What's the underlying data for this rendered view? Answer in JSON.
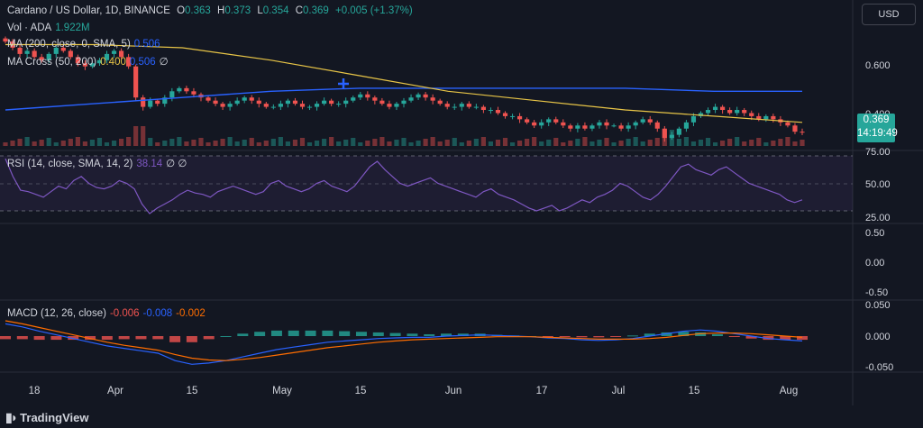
{
  "header": {
    "symbol_title": "Cardano / US Dollar, 1D, BINANCE",
    "o_label": "O",
    "o_value": "0.363",
    "h_label": "H",
    "h_value": "0.373",
    "l_label": "L",
    "l_value": "0.354",
    "c_label": "C",
    "c_value": "0.369",
    "change": "+0.005 (+1.37%)"
  },
  "currency_button": "USD",
  "price_tag": {
    "price": "0.369",
    "countdown": "14:19:49"
  },
  "legends": {
    "vol": {
      "name": "Vol · ADA",
      "value": "1.922M"
    },
    "ma": {
      "name": "MA (200, close, 0, SMA, 5)",
      "value": "0.506"
    },
    "ma_cross": {
      "name": "MA Cross (50, 200)",
      "v1": "0.400",
      "v2": "0.506",
      "tail": "∅"
    },
    "rsi": {
      "name": "RSI (14, close, SMA, 14, 2)",
      "value": "38.14",
      "tail": "∅ ∅"
    },
    "macd": {
      "name": "MACD (12, 26, close)",
      "v1": "-0.006",
      "v2": "-0.008",
      "v3": "-0.002"
    }
  },
  "branding": "TradingView",
  "colors": {
    "up": "#26a69a",
    "down": "#ef5350",
    "ma200": "#2962ff",
    "ma50": "#e8c547",
    "rsi": "#7e57c2",
    "macd": "#2962ff",
    "signal": "#ff6d00"
  },
  "chart_data": {
    "type": "candlestick",
    "x_tick_labels": [
      "18",
      "Apr",
      "15",
      "May",
      "15",
      "Jun",
      "17",
      "Jul",
      "15",
      "Aug"
    ],
    "price_axis": {
      "ticks": [
        "0.600",
        "0.400"
      ],
      "min": 0.33,
      "max": 0.75
    },
    "price_close_approx": [
      0.66,
      0.64,
      0.62,
      0.63,
      0.61,
      0.6,
      0.62,
      0.64,
      0.63,
      0.61,
      0.59,
      0.58,
      0.59,
      0.6,
      0.62,
      0.63,
      0.61,
      0.58,
      0.48,
      0.45,
      0.47,
      0.46,
      0.48,
      0.5,
      0.51,
      0.5,
      0.49,
      0.48,
      0.47,
      0.46,
      0.45,
      0.46,
      0.47,
      0.48,
      0.47,
      0.46,
      0.45,
      0.45,
      0.46,
      0.47,
      0.46,
      0.45,
      0.45,
      0.46,
      0.47,
      0.46,
      0.46,
      0.47,
      0.48,
      0.49,
      0.48,
      0.47,
      0.46,
      0.45,
      0.46,
      0.47,
      0.48,
      0.49,
      0.48,
      0.47,
      0.46,
      0.45,
      0.45,
      0.46,
      0.45,
      0.45,
      0.44,
      0.44,
      0.43,
      0.42,
      0.42,
      0.41,
      0.4,
      0.39,
      0.4,
      0.41,
      0.4,
      0.39,
      0.38,
      0.39,
      0.38,
      0.39,
      0.4,
      0.39,
      0.39,
      0.38,
      0.39,
      0.4,
      0.41,
      0.4,
      0.38,
      0.35,
      0.36,
      0.38,
      0.4,
      0.42,
      0.43,
      0.44,
      0.45,
      0.44,
      0.43,
      0.44,
      0.43,
      0.42,
      0.41,
      0.42,
      0.41,
      0.4,
      0.39,
      0.37,
      0.369
    ],
    "ma200_approx": [
      0.44,
      0.46,
      0.48,
      0.5,
      0.51,
      0.51,
      0.51,
      0.51,
      0.5,
      0.5
    ],
    "ma50_approx": [
      0.65,
      0.65,
      0.64,
      0.6,
      0.55,
      0.5,
      0.47,
      0.44,
      0.42,
      0.4
    ],
    "volume_approx": "bars per candle, spike near mid-April and early July",
    "rsi": {
      "ticks": [
        "75.00",
        "50.00",
        "25.00"
      ],
      "levels": [
        70,
        50,
        30
      ],
      "values_approx": [
        68,
        55,
        45,
        44,
        42,
        40,
        44,
        48,
        46,
        52,
        55,
        50,
        47,
        46,
        48,
        52,
        50,
        46,
        35,
        28,
        32,
        35,
        38,
        42,
        45,
        43,
        42,
        40,
        44,
        46,
        48,
        46,
        44,
        42,
        44,
        50,
        52,
        48,
        46,
        44,
        46,
        50,
        52,
        48,
        46,
        44,
        48,
        55,
        62,
        66,
        60,
        55,
        50,
        48,
        50,
        52,
        54,
        50,
        48,
        46,
        44,
        42,
        40,
        44,
        46,
        42,
        40,
        38,
        35,
        32,
        30,
        32,
        34,
        30,
        32,
        35,
        38,
        36,
        40,
        42,
        45,
        50,
        48,
        44,
        40,
        38,
        42,
        48,
        55,
        62,
        64,
        60,
        58,
        56,
        60,
        62,
        58,
        54,
        50,
        48,
        46,
        44,
        42,
        38,
        36,
        38
      ]
    },
    "middle_pane": {
      "ticks": [
        "0.50",
        "0.00",
        "-0.50"
      ]
    },
    "macd": {
      "ticks": [
        "0.050",
        "0.000",
        "-0.050"
      ],
      "macd_approx": [
        0.02,
        0.015,
        0.008,
        0.002,
        -0.004,
        -0.01,
        -0.016,
        -0.02,
        -0.024,
        -0.028,
        -0.04,
        -0.046,
        -0.044,
        -0.04,
        -0.034,
        -0.028,
        -0.022,
        -0.018,
        -0.014,
        -0.01,
        -0.008,
        -0.006,
        -0.004,
        -0.003,
        -0.002,
        -0.002,
        0.0,
        0.001,
        0.002,
        0.001,
        0.0,
        -0.001,
        -0.003,
        -0.004,
        -0.006,
        -0.007,
        -0.006,
        -0.004,
        0.0,
        0.004,
        0.008,
        0.01,
        0.008,
        0.004,
        0.0,
        -0.004,
        -0.006,
        -0.008
      ],
      "signal_approx": [
        0.025,
        0.02,
        0.014,
        0.008,
        0.002,
        -0.004,
        -0.01,
        -0.015,
        -0.019,
        -0.023,
        -0.03,
        -0.036,
        -0.039,
        -0.04,
        -0.038,
        -0.035,
        -0.031,
        -0.027,
        -0.023,
        -0.019,
        -0.016,
        -0.013,
        -0.01,
        -0.008,
        -0.006,
        -0.005,
        -0.004,
        -0.003,
        -0.002,
        -0.001,
        -0.001,
        -0.001,
        -0.002,
        -0.003,
        -0.004,
        -0.005,
        -0.005,
        -0.005,
        -0.004,
        -0.002,
        0.001,
        0.004,
        0.005,
        0.005,
        0.004,
        0.002,
        0.0,
        -0.002
      ]
    }
  }
}
